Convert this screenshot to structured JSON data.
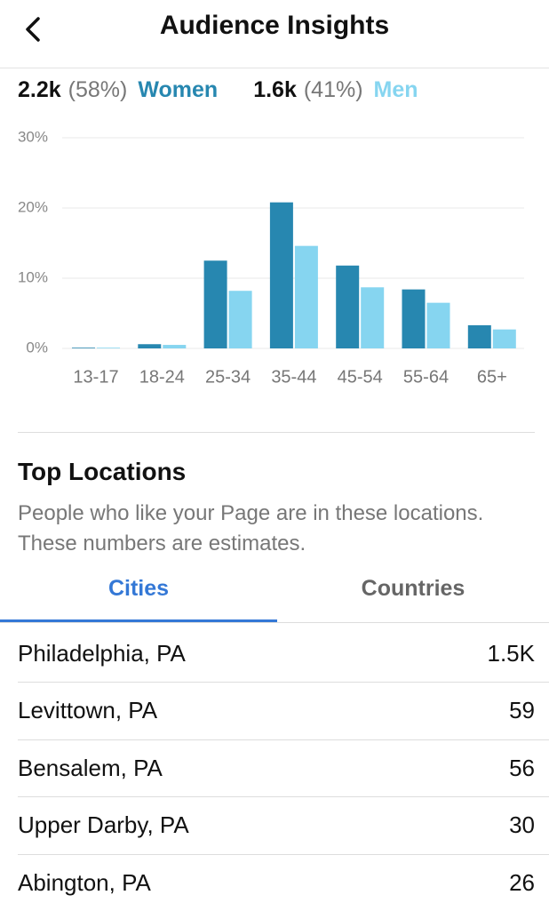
{
  "header": {
    "title": "Audience Insights"
  },
  "summary": [
    {
      "count": "2.2k",
      "share": "(58%)"
    },
    {
      "count": "1.6k",
      "share": "(41%)"
    }
  ],
  "chart_data": {
    "type": "bar",
    "categories": [
      "13-17",
      "18-24",
      "25-34",
      "35-44",
      "45-54",
      "55-64",
      "65+"
    ],
    "series": [
      {
        "name": "Women",
        "color": "#2787b0",
        "values": [
          0.1,
          0.6,
          12.5,
          20.8,
          11.8,
          8.4,
          3.3
        ]
      },
      {
        "name": "Men",
        "color": "#86d5f0",
        "values": [
          0.1,
          0.5,
          8.2,
          14.6,
          8.7,
          6.5,
          2.7
        ]
      }
    ],
    "ylim": [
      0,
      30
    ],
    "yticks": [
      {
        "value": 0,
        "label": "0%"
      },
      {
        "value": 10,
        "label": "10%"
      },
      {
        "value": 20,
        "label": "20%"
      },
      {
        "value": 30,
        "label": "30%"
      }
    ],
    "grid": true
  },
  "locations": {
    "title": "Top Locations",
    "description": "People who like your Page are in these locations. These numbers are estimates.",
    "tabs": [
      "Cities",
      "Countries"
    ],
    "rows": [
      [
        "Philadelphia, PA",
        "1.5K"
      ],
      [
        "Levittown, PA",
        59
      ],
      [
        "Bensalem, PA",
        56
      ],
      [
        "Upper Darby, PA",
        30
      ],
      [
        "Abington, PA",
        26
      ]
    ]
  }
}
